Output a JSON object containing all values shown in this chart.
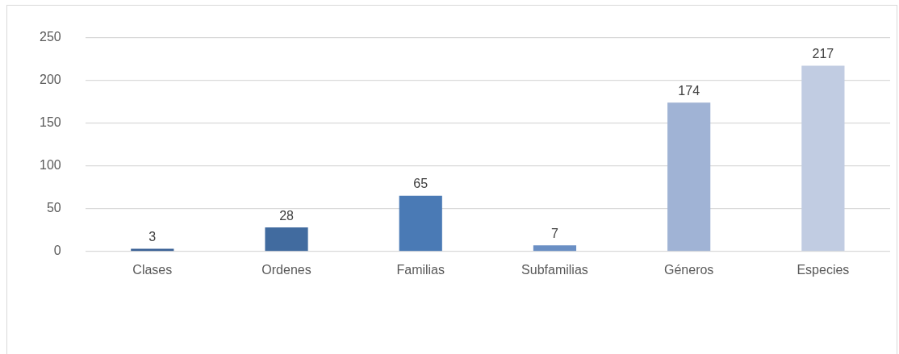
{
  "chart_data": {
    "type": "bar",
    "categories": [
      "Clases",
      "Ordenes",
      "Familias",
      "Subfamilias",
      "Géneros",
      "Especies"
    ],
    "values": [
      3,
      28,
      65,
      7,
      174,
      217
    ],
    "colors": [
      "#3b6296",
      "#416b9f",
      "#4a7ab5",
      "#6a8fc4",
      "#a0b3d5",
      "#c1cce2"
    ],
    "ylim": [
      0,
      250
    ],
    "yticks": [
      0,
      50,
      100,
      150,
      200,
      250
    ],
    "grid": "y",
    "data_labels": true,
    "legend": false
  }
}
